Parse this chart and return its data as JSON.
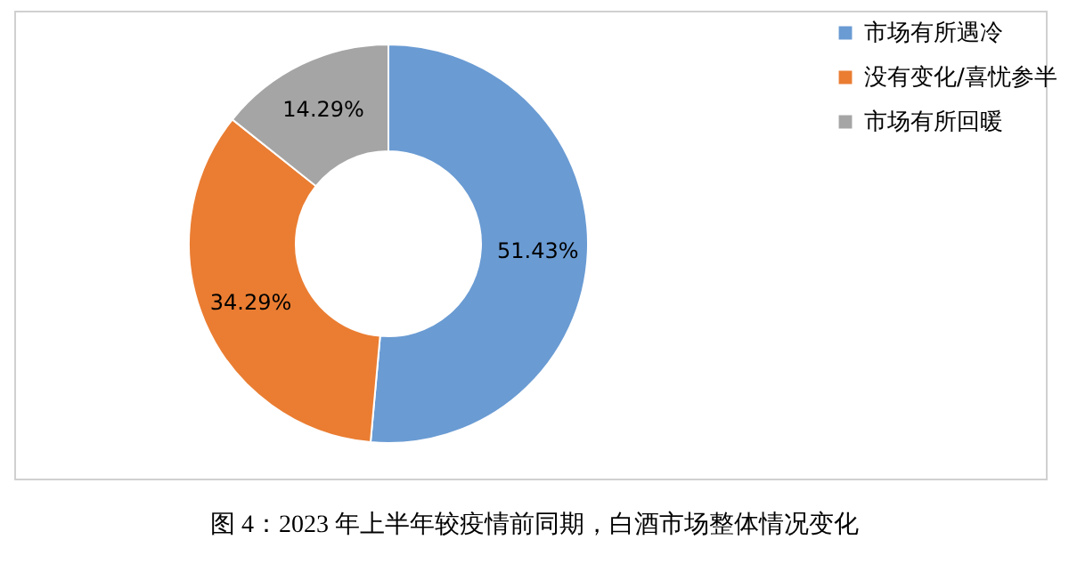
{
  "chart_data": {
    "type": "donut",
    "title": "图 4：2023 年上半年较疫情前同期，白酒市场整体情况变化",
    "categories": [
      "市场有所遇冷",
      "没有变化/喜忧参半",
      "市场有所回暖"
    ],
    "values": [
      51.43,
      34.29,
      14.29
    ],
    "colors": [
      "#6a9bd3",
      "#ea7d32",
      "#a5a5a5"
    ],
    "value_labels": [
      "51.43%",
      "34.29%",
      "14.29%"
    ],
    "legend": "right"
  }
}
